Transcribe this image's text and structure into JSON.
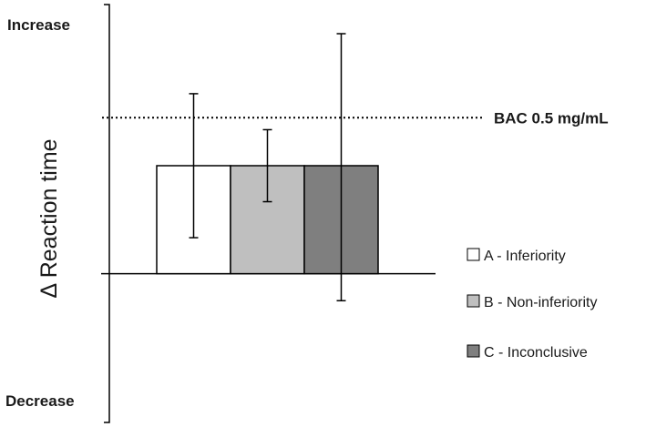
{
  "chart_data": {
    "type": "bar",
    "title": "",
    "xlabel": "",
    "ylabel": "Δ Reaction time",
    "axis_end_labels": {
      "top": "Increase",
      "bottom": "Decrease"
    },
    "ylim": [
      -1.25,
      4.0
    ],
    "grid": false,
    "legend_placement": "bottom-right",
    "reference_line": {
      "label": "BAC 0.5 mg/mL",
      "value": 2.6,
      "style": "dotted"
    },
    "categories": [
      "A - Inferiority",
      "B - Non-inferiority",
      "C - Inconclusive"
    ],
    "series": [
      {
        "values": [
          1.8,
          1.8,
          1.8
        ],
        "error_low": [
          0.6,
          1.2,
          -0.45
        ],
        "error_high": [
          3.0,
          2.4,
          4.0
        ]
      }
    ],
    "colors": [
      "#ffffff",
      "#bfbfbf",
      "#7f7f7f"
    ],
    "legend": [
      {
        "label": "A - Inferiority",
        "color": "#ffffff"
      },
      {
        "label": "B - Non-inferiority",
        "color": "#bfbfbf"
      },
      {
        "label": "C - Inconclusive",
        "color": "#7f7f7f"
      }
    ]
  }
}
